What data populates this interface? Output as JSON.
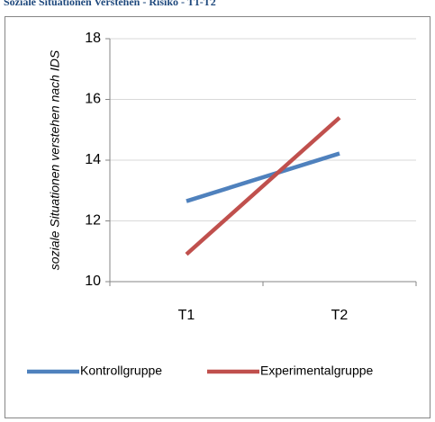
{
  "chart_data": {
    "type": "line",
    "title": "Soziale Situationen Verstehen - Risiko - T1-T2",
    "y_label": "soziale Situationen verstehen nach IDS",
    "categories": [
      "T1",
      "T2"
    ],
    "series": [
      {
        "name": "Kontrollgruppe",
        "color": "#4f81bd",
        "values": [
          12.65,
          14.22
        ]
      },
      {
        "name": "Experimentalgruppe",
        "color": "#c0504d",
        "values": [
          10.9,
          15.4
        ]
      }
    ],
    "ylim": [
      10,
      18
    ],
    "yticks": [
      10,
      12,
      14,
      16,
      18
    ],
    "grid": true,
    "legend": "bottom"
  }
}
